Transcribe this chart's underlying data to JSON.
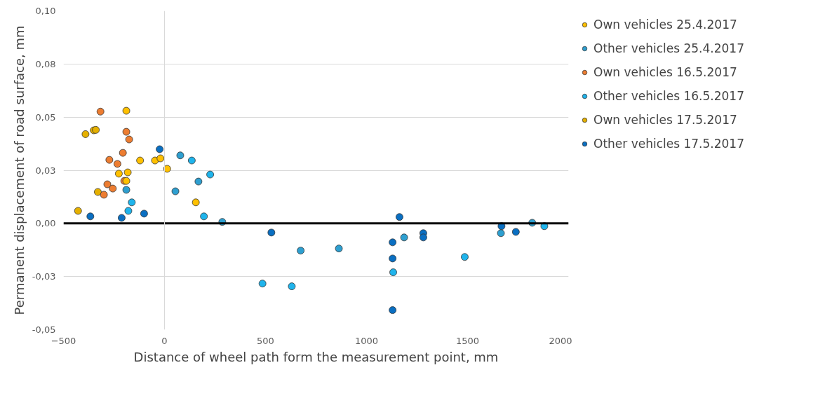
{
  "chart_data": {
    "type": "scatter",
    "xlabel": "Distance of wheel path form the measurement point, mm",
    "ylabel": "Permanent displacement of road surface, mm",
    "xlim": [
      -500,
      2000
    ],
    "xticks": [
      -500,
      0,
      500,
      1000,
      1500,
      2000
    ],
    "ylim": [
      -0.05,
      0.1
    ],
    "yticks": [
      {
        "value": -0.05,
        "label": "-0,05"
      },
      {
        "value": -0.025,
        "label": "-0,03"
      },
      {
        "value": 0,
        "label": "0,00"
      },
      {
        "value": 0.025,
        "label": "0,03"
      },
      {
        "value": 0.05,
        "label": "0,05"
      },
      {
        "value": 0.075,
        "label": "0,08"
      },
      {
        "value": 0.1,
        "label": "0,10"
      }
    ],
    "grid": "y",
    "legend": "right",
    "marker": "circle",
    "ref_lines": [
      {
        "axis": "y",
        "value": 0,
        "color": "#000000"
      },
      {
        "axis": "x",
        "value": 0,
        "color": "#d9d9d9"
      }
    ],
    "series": [
      {
        "name": "Own vehicles 25.4.2017",
        "color": "#ffc000",
        "x": [
          -189,
          -121,
          -47,
          -20,
          13,
          -226,
          -182,
          -189,
          155
        ],
        "values": [
          0.053,
          0.0296,
          0.0296,
          0.0306,
          0.0257,
          0.0234,
          0.024,
          0.02,
          0.0099
        ]
      },
      {
        "name": "Other vehicles 25.4.2017",
        "color": "#2e9fd0",
        "x": [
          -189,
          78,
          54,
          168,
          286,
          674,
          863,
          1186,
          1665,
          1820
        ],
        "values": [
          0.0158,
          0.032,
          0.0151,
          0.0197,
          0.0007,
          -0.0128,
          -0.0118,
          -0.0066,
          -0.0046,
          0.0003
        ]
      },
      {
        "name": "Own vehicles 16.5.2017",
        "color": "#ed7d31",
        "x": [
          -317,
          -189,
          -175,
          -206,
          -273,
          -233,
          -199,
          -283,
          -256,
          -300
        ],
        "values": [
          0.0526,
          0.0431,
          0.0395,
          0.0332,
          0.0299,
          0.028,
          0.02,
          0.0184,
          0.0164,
          0.0135
        ]
      },
      {
        "name": "Other vehicles 16.5.2017",
        "color": "#1fb4ec",
        "x": [
          -162,
          -179,
          135,
          226,
          195,
          485,
          630,
          1132,
          1486,
          1880
        ],
        "values": [
          0.0099,
          0.0059,
          0.0296,
          0.023,
          0.0033,
          -0.0283,
          -0.0296,
          -0.023,
          -0.0158,
          -0.0013
        ]
      },
      {
        "name": "Own vehicles 17.5.2017",
        "color": "#e5b000",
        "x": [
          -391,
          -350,
          -340,
          -330,
          -428
        ],
        "values": [
          0.042,
          0.0438,
          0.044,
          0.0148,
          0.0059
        ]
      },
      {
        "name": "Other vehicles 17.5.2017",
        "color": "#0a6fc2",
        "x": [
          -367,
          -212,
          -101,
          -24,
          529,
          1163,
          1129,
          1129,
          1129,
          1281,
          1281,
          1668,
          1739
        ],
        "values": [
          0.0033,
          0.0026,
          0.0046,
          0.0349,
          -0.0043,
          0.003,
          -0.0089,
          -0.0165,
          -0.0408,
          -0.0046,
          -0.0066,
          -0.0013,
          -0.004
        ]
      }
    ]
  }
}
